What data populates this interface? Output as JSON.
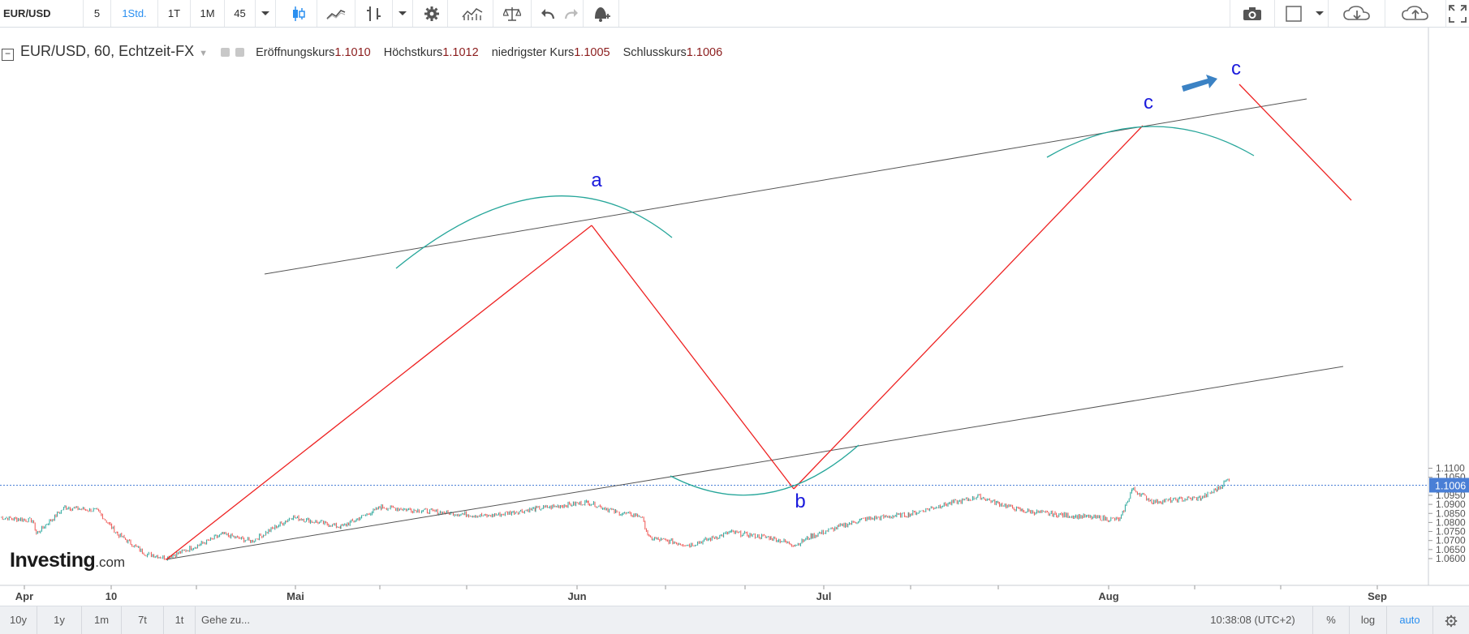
{
  "toolbar": {
    "symbol": "EUR/USD",
    "interval_5": "5",
    "interval_1h": "1Std.",
    "interval_1d": "1T",
    "interval_1m": "1M",
    "interval_45": "45"
  },
  "legend": {
    "title": "EUR/USD, 60, Echtzeit-FX",
    "open_label": "Eröffnungskurs",
    "open_value": "1.1010",
    "high_label": "Höchstkurs",
    "high_value": "1.1012",
    "low_label": "niedrigster Kurs",
    "low_value": "1.1005",
    "close_label": "Schlusskurs",
    "close_value": "1.1006"
  },
  "logo": {
    "name": "Investing",
    "suffix": ".com"
  },
  "bottombar": {
    "range_10y": "10y",
    "range_1y": "1y",
    "range_1m": "1m",
    "range_7t": "7t",
    "range_1t": "1t",
    "goto": "Gehe zu...",
    "time": "10:38:08 (UTC+2)",
    "percent": "%",
    "log": "log",
    "auto": "auto"
  },
  "colors": {
    "candle_up": "#26a69a",
    "candle_down": "#ef5350",
    "red_line": "#ee2222",
    "arc": "#26a69a",
    "channel": "#555555",
    "wave_label": "#1a1adc",
    "arrow": "#3b82c4",
    "price_line": "#4a7fd6"
  },
  "chart_data": {
    "type": "line",
    "symbol": "EUR/USD",
    "interval": "60",
    "y_ticks": [
      "1.1100",
      "1.1050",
      "1.1006",
      "1.0950",
      "1.0900",
      "1.0850",
      "1.0800",
      "1.0750",
      "1.0700",
      "1.0650",
      "1.0600"
    ],
    "ylim": [
      1.0575,
      1.1105
    ],
    "x_ticks": [
      "Apr",
      "10",
      "Mai",
      "Jun",
      "Jul",
      "Aug",
      "Sep"
    ],
    "last_price": 1.1006,
    "series": [
      {
        "x": [
          "Apr",
          "Apr",
          "Apr",
          "Apr",
          "10",
          "10",
          "10",
          "10",
          "10",
          "Mai",
          "Mai",
          "Mai",
          "Mai",
          "Mai",
          "Mai",
          "Mai",
          "Mai",
          "Jun",
          "Jun",
          "Jun",
          "Jun",
          "Jun",
          "Jun",
          "Jun",
          "Jun",
          "Jul",
          "Jul",
          "Jul",
          "Jul",
          "Jul",
          "Jul",
          "Jul",
          "Jul",
          "Jul",
          "Aug",
          "Aug",
          "Aug",
          "Aug",
          "Aug",
          "Aug"
        ],
        "values": [
          1.0828,
          1.081,
          1.0738,
          1.0885,
          1.0865,
          1.0735,
          1.0625,
          1.0605,
          1.0675,
          1.0735,
          1.0695,
          1.083,
          1.0775,
          1.0885,
          1.0865,
          1.0835,
          1.0875,
          1.0912,
          1.0855,
          1.0835,
          1.0715,
          1.0675,
          1.0745,
          1.0715,
          1.0675,
          1.0725,
          1.0815,
          1.0845,
          1.0895,
          1.0935,
          1.0945,
          1.0905,
          1.0865,
          1.0845,
          1.0815,
          1.0985,
          1.0915,
          1.0935,
          1.0985,
          1.1045
        ]
      }
    ],
    "annotations": [
      "a",
      "b",
      "c",
      "c"
    ]
  }
}
